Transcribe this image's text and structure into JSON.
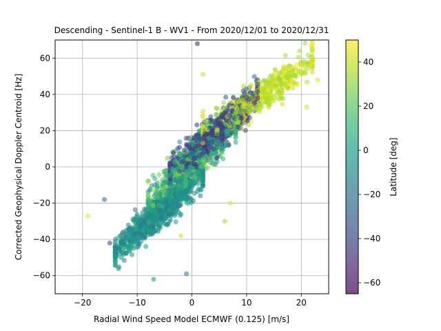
{
  "chart_data": {
    "type": "scatter",
    "title": "Descending - Sentinel-1 B - WV1 - From 2020/12/01 to 2020/12/31",
    "xlabel": "Radial Wind Speed Model ECMWF (0.125) [m/s]",
    "ylabel": "Corrected Geophysical Doppler Centroid [Hz]",
    "xlim": [
      -25,
      25
    ],
    "ylim": [
      -70,
      70
    ],
    "xticks": [
      -20,
      -10,
      0,
      10,
      20
    ],
    "yticks": [
      -60,
      -40,
      -20,
      0,
      20,
      40,
      60
    ],
    "grid": true,
    "point_alpha": 0.55,
    "colorbar": {
      "label": "Latitude [deg]",
      "min": -65,
      "max": 50,
      "ticks": [
        -60,
        -40,
        -20,
        0,
        20,
        40
      ],
      "colormap": "viridis",
      "stops": [
        "#440154",
        "#482878",
        "#3e4989",
        "#31688e",
        "#26828e",
        "#1f9e89",
        "#35b779",
        "#6ece58",
        "#b5de2b",
        "#fde725"
      ]
    },
    "series": [
      {
        "clusters": [
          {
            "x_range": [
              -14,
              2
            ],
            "slope": 2.6,
            "intercept": -10,
            "spread": 7,
            "lat_range": [
              -20,
              5
            ],
            "count": 900
          },
          {
            "x_range": [
              -4,
              12
            ],
            "slope": 2.6,
            "intercept": 7,
            "spread": 8,
            "lat_range": [
              -55,
              -25
            ],
            "count": 800
          },
          {
            "x_range": [
              2,
              22
            ],
            "slope": 2.0,
            "intercept": 14,
            "spread": 7,
            "lat_range": [
              30,
              50
            ],
            "count": 600
          },
          {
            "x_range": [
              -8,
              8
            ],
            "slope": 2.8,
            "intercept": 2,
            "spread": 10,
            "lat_range": [
              -10,
              30
            ],
            "count": 700
          }
        ],
        "outliers": [
          {
            "x": -19,
            "y": -27,
            "lat": 45
          },
          {
            "x": -16,
            "y": -18,
            "lat": -25
          },
          {
            "x": -15,
            "y": -42,
            "lat": -40
          },
          {
            "x": -1,
            "y": -59,
            "lat": -20
          },
          {
            "x": -7,
            "y": -62,
            "lat": -5
          },
          {
            "x": 7,
            "y": -20,
            "lat": 45
          },
          {
            "x": 6,
            "y": -30,
            "lat": 35
          },
          {
            "x": 1,
            "y": 68,
            "lat": -55
          },
          {
            "x": 22,
            "y": 67,
            "lat": 48
          },
          {
            "x": 21,
            "y": 33,
            "lat": 40
          },
          {
            "x": -2,
            "y": -38,
            "lat": 42
          },
          {
            "x": 2,
            "y": 51,
            "lat": 38
          },
          {
            "x": 23,
            "y": 48,
            "lat": 45
          }
        ]
      }
    ]
  }
}
